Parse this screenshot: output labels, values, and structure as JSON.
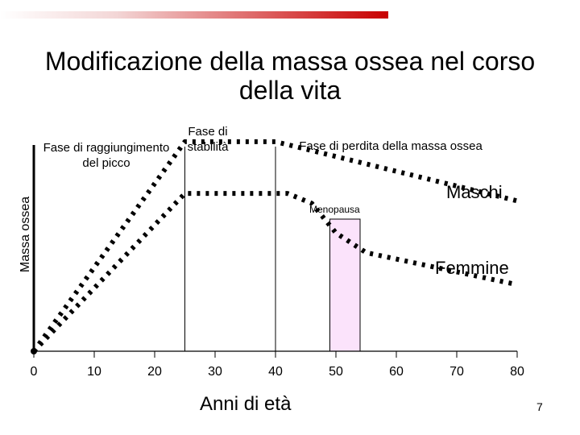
{
  "slide": {
    "title": "Modificazione della massa ossea nel corso della vita",
    "page_number": "7"
  },
  "colors": {
    "bar_accent": "#c80000",
    "menopause_fill": "#fbe3fb",
    "curve": "#000000"
  },
  "chart_data": {
    "type": "line",
    "title": "",
    "xlabel": "Anni di età",
    "ylabel": "Massa ossea",
    "xlim": [
      0,
      80
    ],
    "ylim": [
      0,
      100
    ],
    "x_ticks": [
      "0",
      "10",
      "20",
      "30",
      "40",
      "50",
      "60",
      "70",
      "80"
    ],
    "phase_labels": {
      "peak": "Fase di raggiungimento del picco",
      "stability": "Fase di stabilità",
      "loss": "Fase di perdita della massa ossea"
    },
    "menopause": {
      "label": "Menopausa",
      "x_range": [
        49,
        54
      ]
    },
    "phase_boundaries_x": [
      25,
      40
    ],
    "series": [
      {
        "name": "Maschi",
        "x": [
          0,
          25,
          40,
          80
        ],
        "y": [
          0,
          85,
          85,
          61
        ]
      },
      {
        "name": "Femmine",
        "x": [
          0,
          25,
          42,
          46,
          50,
          55,
          80
        ],
        "y": [
          0,
          64,
          64,
          60,
          48,
          40,
          27
        ]
      }
    ],
    "grid": false
  }
}
